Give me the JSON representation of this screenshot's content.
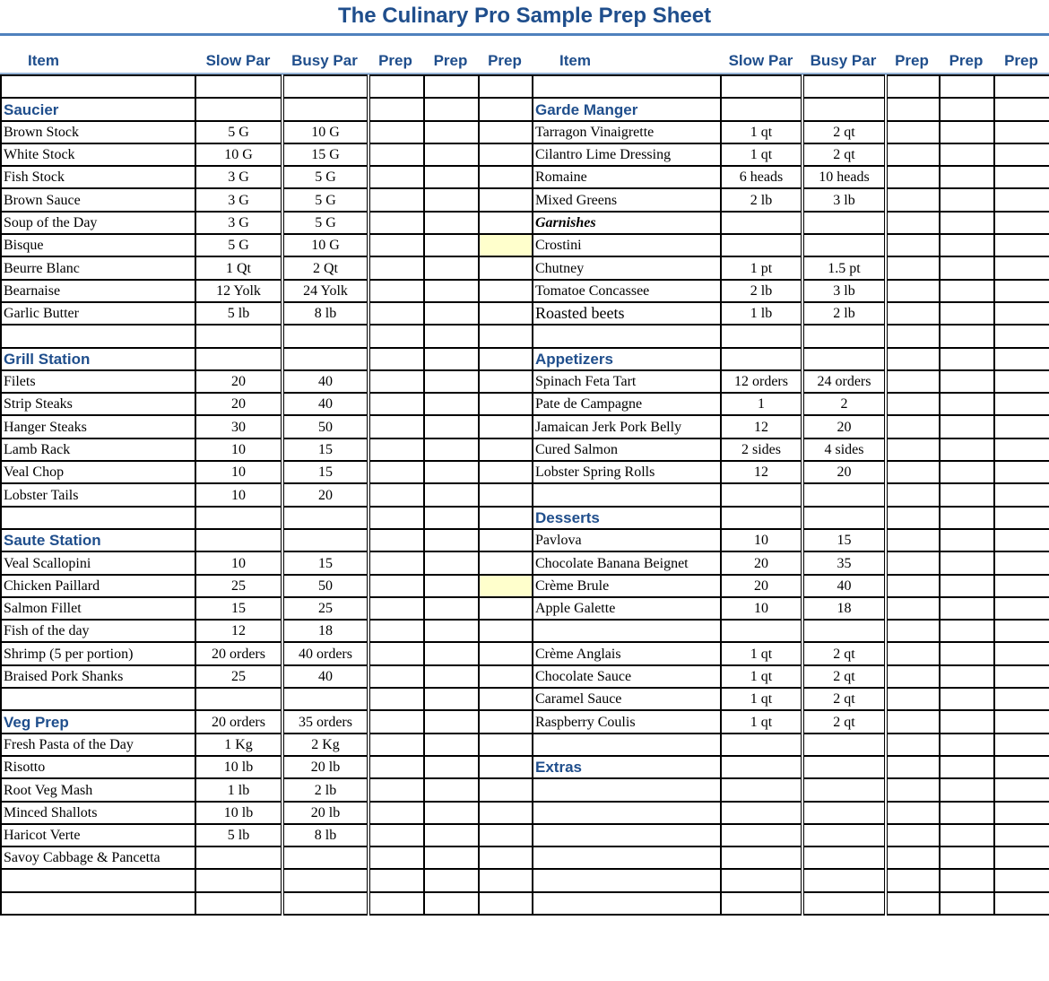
{
  "title": "The Culinary Pro Sample Prep Sheet",
  "columns": {
    "item": "Item",
    "slow": "Slow Par",
    "busy": "Busy Par",
    "prep": "Prep"
  },
  "highlight_color": "#FFFFCC",
  "rows": [
    {
      "l": {},
      "r": {}
    },
    {
      "l": {
        "item": "Saucier",
        "type": "section"
      },
      "r": {
        "item": "Garde Manger",
        "type": "section"
      }
    },
    {
      "l": {
        "item": "Brown Stock",
        "slow": "5 G",
        "busy": "10 G"
      },
      "r": {
        "item": "Tarragon Vinaigrette",
        "slow": "1 qt",
        "busy": "2 qt"
      }
    },
    {
      "l": {
        "item": "White Stock",
        "slow": "10 G",
        "busy": "15 G"
      },
      "r": {
        "item": "Cilantro Lime Dressing",
        "slow": "1 qt",
        "busy": "2 qt"
      }
    },
    {
      "l": {
        "item": "Fish Stock",
        "slow": "3 G",
        "busy": "5 G"
      },
      "r": {
        "item": "Romaine",
        "slow": "6 heads",
        "busy": "10 heads"
      }
    },
    {
      "l": {
        "item": "Brown Sauce",
        "slow": "3 G",
        "busy": "5 G"
      },
      "r": {
        "item": "Mixed Greens",
        "slow": "2 lb",
        "busy": "3 lb"
      }
    },
    {
      "l": {
        "item": "Soup of the Day",
        "slow": "3 G",
        "busy": "5 G"
      },
      "r": {
        "item": "Garnishes",
        "type": "subsection"
      }
    },
    {
      "l": {
        "item": "Bisque",
        "slow": "5 G",
        "busy": "10 G",
        "highlight": true
      },
      "r": {
        "item": "Crostini"
      }
    },
    {
      "l": {
        "item": "Beurre Blanc",
        "slow": "1 Qt",
        "busy": "2 Qt"
      },
      "r": {
        "item": "Chutney",
        "slow": "1 pt",
        "busy": "1.5 pt"
      }
    },
    {
      "l": {
        "item": "Bearnaise",
        "slow": "12 Yolk",
        "busy": "24 Yolk"
      },
      "r": {
        "item": "Tomatoe Concassee",
        "slow": "2 lb",
        "busy": "3 lb"
      }
    },
    {
      "l": {
        "item": "Garlic Butter",
        "slow": "5 lb",
        "busy": "8 lb"
      },
      "r": {
        "item": "Roasted beets",
        "slow": "1 lb",
        "busy": "2 lb",
        "type": "big"
      }
    },
    {
      "l": {},
      "r": {}
    },
    {
      "l": {
        "item": "Grill Station",
        "type": "section"
      },
      "r": {
        "item": "Appetizers",
        "type": "section"
      }
    },
    {
      "l": {
        "item": "Filets",
        "slow": "20",
        "busy": "40"
      },
      "r": {
        "item": "Spinach Feta Tart",
        "slow": "12 orders",
        "busy": "24 orders"
      }
    },
    {
      "l": {
        "item": "Strip Steaks",
        "slow": "20",
        "busy": "40"
      },
      "r": {
        "item": "Pate de Campagne",
        "slow": "1",
        "busy": "2"
      }
    },
    {
      "l": {
        "item": "Hanger Steaks",
        "slow": "30",
        "busy": "50"
      },
      "r": {
        "item": "Jamaican Jerk Pork Belly",
        "slow": "12",
        "busy": "20"
      }
    },
    {
      "l": {
        "item": "Lamb Rack",
        "slow": "10",
        "busy": "15"
      },
      "r": {
        "item": "Cured Salmon",
        "slow": "2 sides",
        "busy": "4 sides"
      }
    },
    {
      "l": {
        "item": "Veal Chop",
        "slow": "10",
        "busy": "15"
      },
      "r": {
        "item": "Lobster Spring Rolls",
        "slow": "12",
        "busy": "20"
      }
    },
    {
      "l": {
        "item": "Lobster Tails",
        "slow": "10",
        "busy": "20"
      },
      "r": {}
    },
    {
      "l": {},
      "r": {
        "item": "Desserts",
        "type": "section"
      }
    },
    {
      "l": {
        "item": "Saute Station",
        "type": "section"
      },
      "r": {
        "item": "Pavlova",
        "slow": "10",
        "busy": "15"
      }
    },
    {
      "l": {
        "item": "Veal Scallopini",
        "slow": "10",
        "busy": "15"
      },
      "r": {
        "item": "Chocolate Banana Beignet",
        "slow": "20",
        "busy": "35"
      }
    },
    {
      "l": {
        "item": "Chicken Paillard",
        "slow": "25",
        "busy": "50",
        "highlight": true
      },
      "r": {
        "item": "Crème Brule",
        "slow": "20",
        "busy": "40"
      }
    },
    {
      "l": {
        "item": "Salmon Fillet",
        "slow": "15",
        "busy": "25"
      },
      "r": {
        "item": "Apple Galette",
        "slow": "10",
        "busy": "18"
      }
    },
    {
      "l": {
        "item": "Fish of the day",
        "slow": "12",
        "busy": "18"
      },
      "r": {}
    },
    {
      "l": {
        "item": "Shrimp (5 per portion)",
        "slow": "20 orders",
        "busy": "40 orders"
      },
      "r": {
        "item": "Crème Anglais",
        "slow": "1 qt",
        "busy": "2 qt"
      }
    },
    {
      "l": {
        "item": "Braised Pork Shanks",
        "slow": "25",
        "busy": "40"
      },
      "r": {
        "item": "Chocolate Sauce",
        "slow": "1 qt",
        "busy": "2 qt"
      }
    },
    {
      "l": {},
      "r": {
        "item": "Caramel Sauce",
        "slow": "1 qt",
        "busy": "2 qt"
      }
    },
    {
      "l": {
        "item": "Veg Prep",
        "slow": "20 orders",
        "busy": "35 orders",
        "type": "section"
      },
      "r": {
        "item": "Raspberry Coulis",
        "slow": "1 qt",
        "busy": "2 qt"
      }
    },
    {
      "l": {
        "item": "Fresh Pasta of the Day",
        "slow": "1 Kg",
        "busy": "2 Kg"
      },
      "r": {}
    },
    {
      "l": {
        "item": "Risotto",
        "slow": "10 lb",
        "busy": "20 lb"
      },
      "r": {
        "item": "Extras",
        "type": "section"
      }
    },
    {
      "l": {
        "item": "Root Veg Mash",
        "slow": "1 lb",
        "busy": "2 lb"
      },
      "r": {}
    },
    {
      "l": {
        "item": "Minced Shallots",
        "slow": "10 lb",
        "busy": "20 lb"
      },
      "r": {}
    },
    {
      "l": {
        "item": "Haricot Verte",
        "slow": "5 lb",
        "busy": "8 lb"
      },
      "r": {}
    },
    {
      "l": {
        "item": "Savoy Cabbage & Pancetta"
      },
      "r": {}
    },
    {
      "l": {},
      "r": {}
    },
    {
      "l": {},
      "r": {}
    }
  ]
}
